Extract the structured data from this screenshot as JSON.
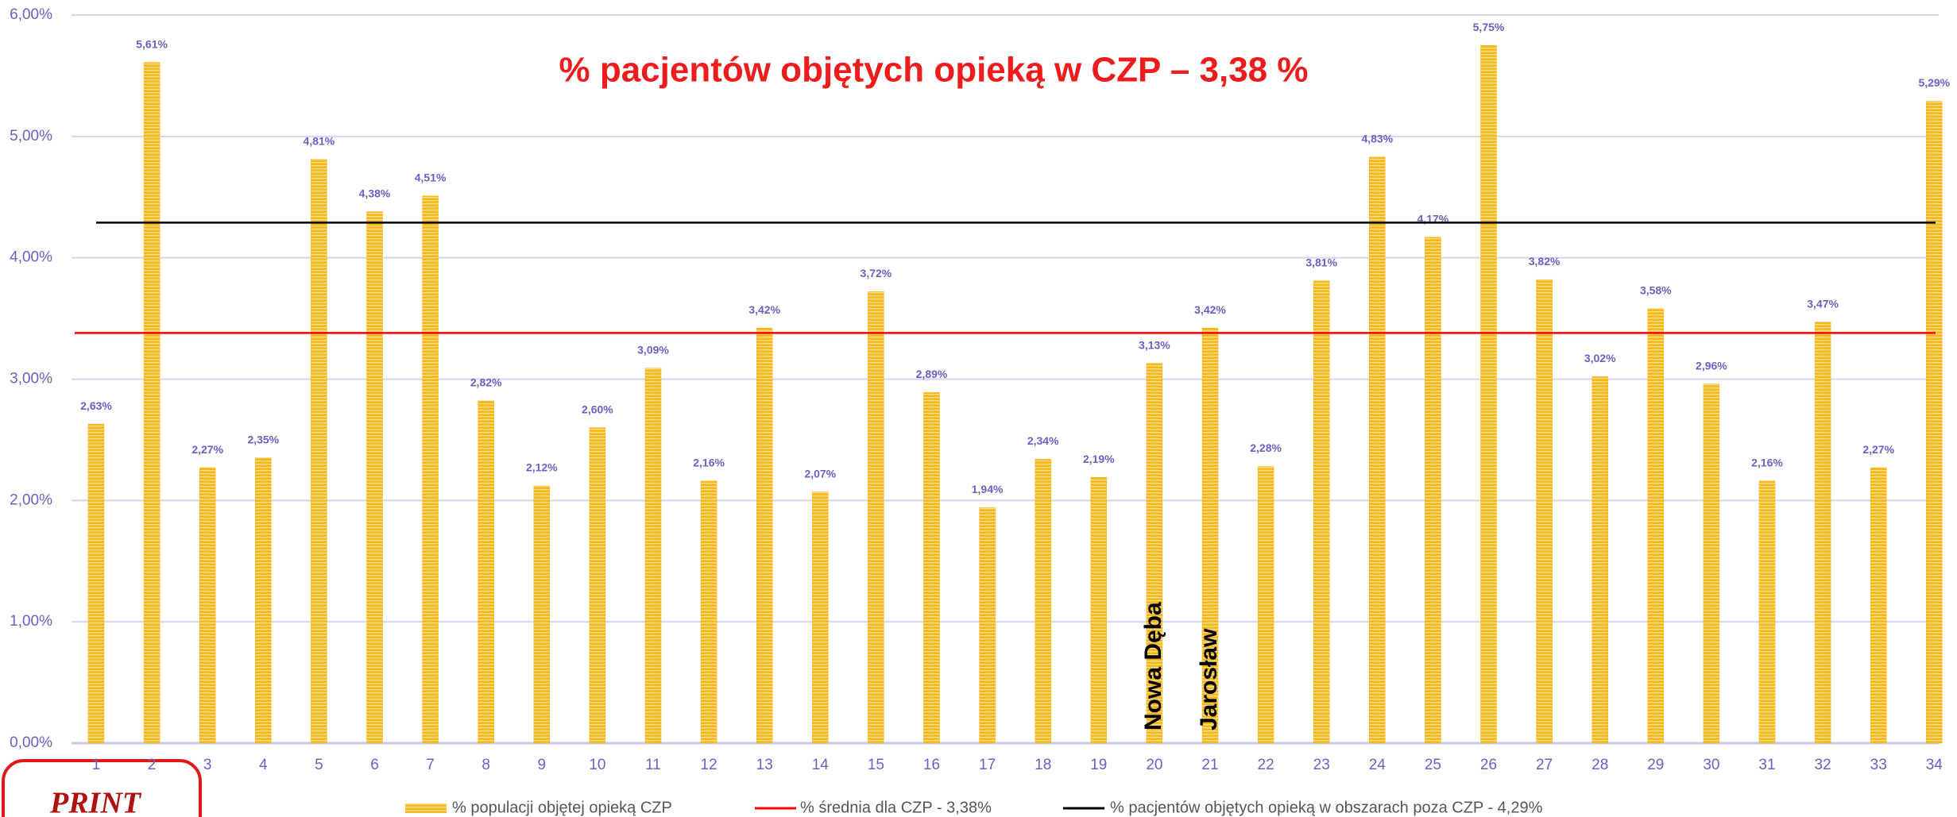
{
  "chart_data": {
    "type": "bar",
    "annotation": "% pacjentów objętych opieką w CZP – 3,38 %",
    "categories": [
      1,
      2,
      3,
      4,
      5,
      6,
      7,
      8,
      9,
      10,
      11,
      12,
      13,
      14,
      15,
      16,
      17,
      18,
      19,
      20,
      21,
      22,
      23,
      24,
      25,
      26,
      27,
      28,
      29,
      30,
      31,
      32,
      33,
      34
    ],
    "series": [
      {
        "name": "% populacji objętej opieką CZP",
        "color": "#f5b61e",
        "values": [
          2.63,
          5.61,
          2.27,
          2.35,
          4.81,
          4.38,
          4.51,
          2.82,
          2.12,
          2.6,
          3.09,
          2.16,
          3.42,
          2.07,
          3.72,
          2.89,
          1.94,
          2.34,
          2.19,
          3.13,
          3.42,
          2.28,
          3.81,
          4.83,
          4.17,
          5.75,
          3.82,
          3.02,
          3.58,
          2.96,
          2.16,
          3.47,
          2.27,
          5.29
        ],
        "value_labels": [
          "2,63%",
          "5,61%",
          "2,27%",
          "2,35%",
          "4,81%",
          "4,38%",
          "4,51%",
          "2,82%",
          "2,12%",
          "2,60%",
          "3,09%",
          "2,16%",
          "3,42%",
          "2,07%",
          "3,72%",
          "2,89%",
          "1,94%",
          "2,34%",
          "2,19%",
          "3,13%",
          "3,42%",
          "2,28%",
          "3,81%",
          "4,83%",
          "4,17%",
          "5,75%",
          "3,82%",
          "3,02%",
          "3,58%",
          "2,96%",
          "2,16%",
          "3,47%",
          "2,27%",
          "5,29%"
        ]
      }
    ],
    "reference_lines": [
      {
        "name": "% średnia dla CZP - 3,38%",
        "value": 3.38,
        "color": "#ff0000"
      },
      {
        "name": "% pacjentów objętych opieką w obszarach poza CZP - 4,29%",
        "value": 4.29,
        "color": "#000000"
      }
    ],
    "bar_notes": [
      "Nowa Dęba",
      "Jarosław"
    ],
    "ylim": [
      0,
      6
    ],
    "yticks": [
      {
        "value": 0,
        "label": "0,00%"
      },
      {
        "value": 1,
        "label": "1,00%"
      },
      {
        "value": 2,
        "label": "2,00%"
      },
      {
        "value": 3,
        "label": "3,00%"
      },
      {
        "value": 4,
        "label": "4,00%"
      },
      {
        "value": 5,
        "label": "5,00%"
      },
      {
        "value": 6,
        "label": "6,00%"
      }
    ],
    "grid": true
  },
  "badge": "PRINT"
}
